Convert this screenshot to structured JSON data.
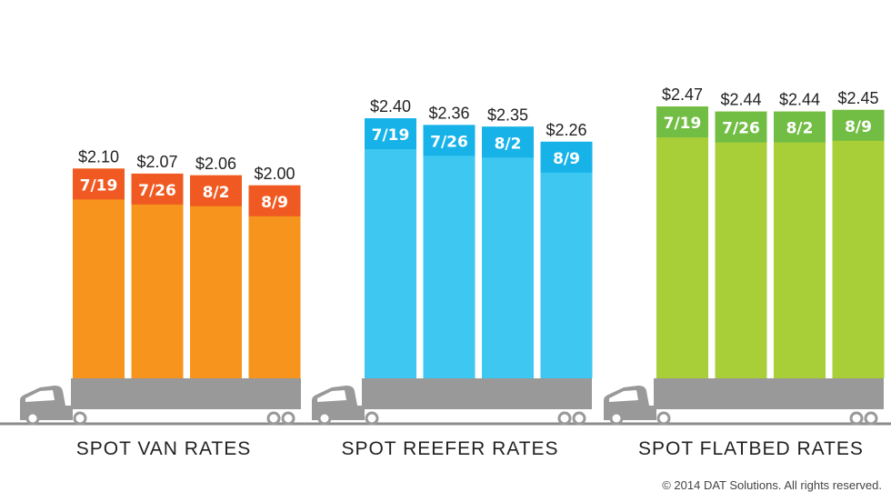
{
  "chart_data": {
    "type": "bar",
    "value_prefix": "$",
    "groups": [
      {
        "title": "SPOT VAN RATES",
        "categories": [
          "7/19",
          "7/26",
          "8/2",
          "8/9"
        ],
        "values": [
          2.1,
          2.07,
          2.06,
          2.0
        ],
        "color": "#f7941d",
        "band_color": "#f05a22"
      },
      {
        "title": "SPOT REEFER RATES",
        "categories": [
          "7/19",
          "7/26",
          "8/2",
          "8/9"
        ],
        "values": [
          2.4,
          2.36,
          2.35,
          2.26
        ],
        "color": "#3ec7f1",
        "band_color": "#17b3e8"
      },
      {
        "title": "SPOT FLATBED RATES",
        "categories": [
          "7/19",
          "7/26",
          "8/2",
          "8/9"
        ],
        "values": [
          2.47,
          2.44,
          2.44,
          2.45
        ],
        "color": "#a8cf38",
        "band_color": "#72bd44"
      }
    ],
    "truck_color": "#999999",
    "ground_color": "#8c8c8c"
  },
  "footer": {
    "copyright": "© 2014 DAT Solutions. All rights reserved."
  }
}
